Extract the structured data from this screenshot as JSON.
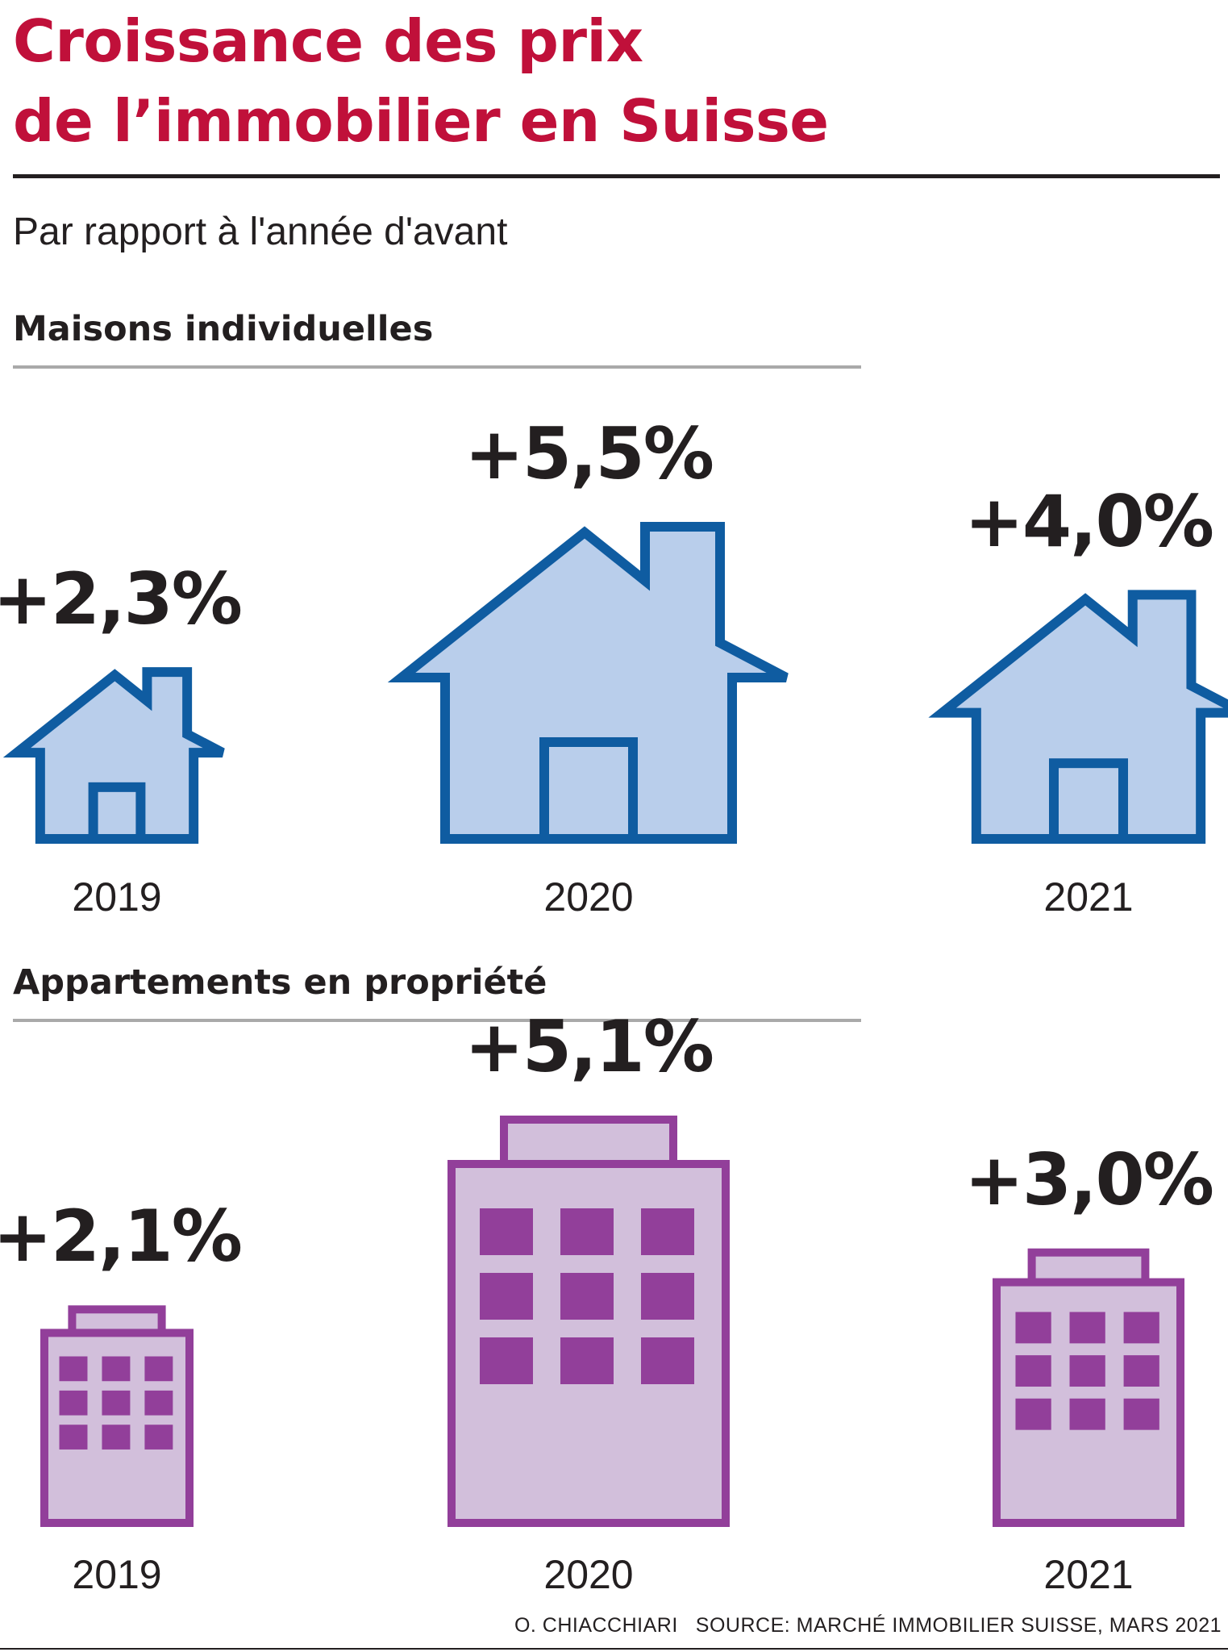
{
  "title": [
    "Croissance des prix",
    "de l’immobilier en Suisse"
  ],
  "subtitle": "Par rapport à l'année d'avant",
  "colors": {
    "title": "#c0103a",
    "house_fill": "#b9ceeb",
    "house_stroke": "#0f5ca1",
    "building_fill": "#d2bfdb",
    "building_stroke": "#923f9a",
    "window": "#923f9a"
  },
  "chart_data": [
    {
      "type": "bar",
      "title": "Maisons individuelles",
      "categories": [
        "2019",
        "2020",
        "2021"
      ],
      "values": [
        2.3,
        5.5,
        4.0
      ],
      "labels": [
        "+2,3%",
        "+5,5%",
        "+4,0%"
      ],
      "icon": "house-icon"
    },
    {
      "type": "bar",
      "title": "Appartements en propriété",
      "categories": [
        "2019",
        "2020",
        "2021"
      ],
      "values": [
        2.1,
        5.1,
        3.0
      ],
      "labels": [
        "+2,1%",
        "+5,1%",
        "+3,0%"
      ],
      "icon": "building-icon"
    }
  ],
  "footer": {
    "author": "O. CHIACCHIARI",
    "source": "SOURCE: MARCHÉ IMMOBILIER SUISSE, MARS 2021"
  }
}
